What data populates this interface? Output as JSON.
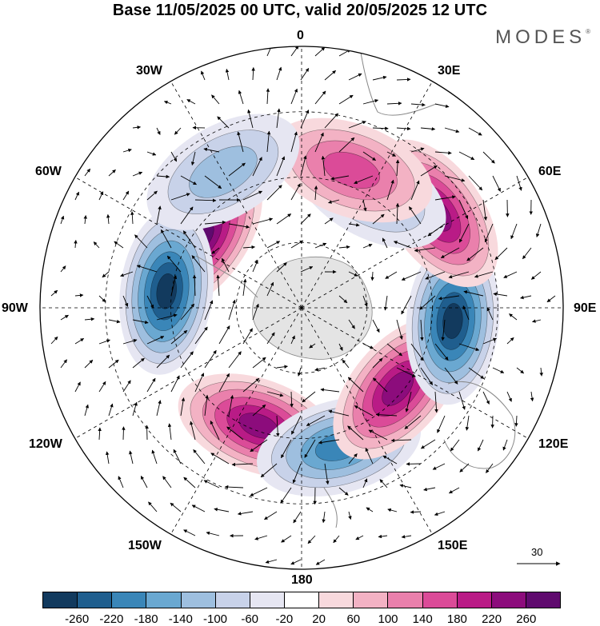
{
  "title": "Base 11/05/2025 00 UTC, valid 20/05/2025 12 UTC",
  "brand": "MODES",
  "brand_mark": "®",
  "lon_labels": {
    "top": "0",
    "e30": "30E",
    "e60": "60E",
    "e90": "90E",
    "e120": "120E",
    "e150": "150E",
    "bottom": "180",
    "w150": "150W",
    "w120": "120W",
    "w90": "90W",
    "w60": "60W",
    "w30": "30W"
  },
  "reference_vector": "30",
  "colorbar": {
    "colors": [
      "#123a5e",
      "#1f5e8e",
      "#3a86b8",
      "#6aa8d1",
      "#9ebfdf",
      "#c8d2e9",
      "#e6e6f2",
      "#ffffff",
      "#f8d9dd",
      "#f3b2c4",
      "#ea80ac",
      "#db4b98",
      "#b91b86",
      "#8c0c7c",
      "#5f0a6e"
    ],
    "ticks": [
      "-260",
      "-220",
      "-180",
      "-140",
      "-100",
      "-60",
      "-20",
      "20",
      "60",
      "100",
      "140",
      "180",
      "220",
      "260"
    ]
  },
  "map_features": {
    "projection": "south polar stereographic",
    "anomalies": [
      {
        "label": "positive",
        "lon_deg": -55,
        "radius_fraction": 0.47,
        "level": 260
      },
      {
        "label": "negative",
        "lon_deg": -83,
        "radius_fraction": 0.52,
        "level": -260
      },
      {
        "label": "positive",
        "lon_deg": -160,
        "radius_fraction": 0.48,
        "level": 220
      },
      {
        "label": "negative",
        "lon_deg": 165,
        "radius_fraction": 0.55,
        "level": -180
      },
      {
        "label": "positive",
        "lon_deg": 130,
        "radius_fraction": 0.48,
        "level": 220
      },
      {
        "label": "negative",
        "lon_deg": 95,
        "radius_fraction": 0.58,
        "level": -260
      },
      {
        "label": "positive",
        "lon_deg": 55,
        "radius_fraction": 0.63,
        "level": 220
      },
      {
        "label": "negative",
        "lon_deg": 30,
        "radius_fraction": 0.52,
        "level": -100
      },
      {
        "label": "positive",
        "lon_deg": 20,
        "radius_fraction": 0.56,
        "level": 140
      },
      {
        "label": "negative",
        "lon_deg": -30,
        "radius_fraction": 0.6,
        "level": -100
      }
    ]
  }
}
